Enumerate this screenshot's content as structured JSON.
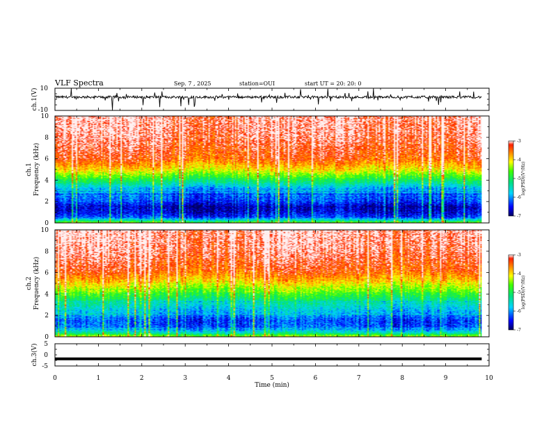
{
  "header": {
    "title": "VLF Spectra",
    "date": "Sep. 7 , 2025",
    "station": "station=OUI",
    "start": "start UT =  20: 20: 0"
  },
  "chart_data": [
    {
      "type": "line",
      "name": "ch1-waveform",
      "ylabel": "ch.1(V)",
      "ylim": [
        -10,
        10
      ],
      "yticks": [
        "10",
        "-10"
      ],
      "baseline": 2
    },
    {
      "type": "heatmap",
      "name": "ch1-spectrogram",
      "ylabel_line1": "ch.1",
      "ylabel_line2": "Frequency (kHz)",
      "ylim": [
        0,
        10
      ],
      "yticks": [
        "0",
        "2",
        "4",
        "6",
        "8",
        "10"
      ],
      "value_range": [
        -7,
        -3
      ],
      "colorbar_label": "log(PSD)(V²/Hz)",
      "colorbar_ticks": [
        "-3",
        "-4",
        "-5",
        "-6",
        "-7"
      ],
      "profile": [
        {
          "f": 0.0,
          "v": -4.5
        },
        {
          "f": 0.2,
          "v": -5.4
        },
        {
          "f": 0.5,
          "v": -6.3
        },
        {
          "f": 1.0,
          "v": -6.6
        },
        {
          "f": 1.5,
          "v": -6.7
        },
        {
          "f": 2.0,
          "v": -6.3
        },
        {
          "f": 2.6,
          "v": -6.1
        },
        {
          "f": 3.2,
          "v": -5.9
        },
        {
          "f": 3.8,
          "v": -5.2
        },
        {
          "f": 4.4,
          "v": -4.6
        },
        {
          "f": 5.0,
          "v": -4.0
        },
        {
          "f": 6.0,
          "v": -3.4
        },
        {
          "f": 8.0,
          "v": -3.1
        },
        {
          "f": 10.0,
          "v": -3.0
        }
      ]
    },
    {
      "type": "heatmap",
      "name": "ch2-spectrogram",
      "ylabel_line1": "ch.2",
      "ylabel_line2": "Frequency (kHz)",
      "ylim": [
        0,
        10
      ],
      "yticks": [
        "0",
        "2",
        "4",
        "6",
        "8",
        "10"
      ],
      "value_range": [
        -7,
        -3
      ],
      "colorbar_label": "log(PSD)(V²/Hz)",
      "colorbar_ticks": [
        "-3",
        "-4",
        "-5",
        "-6",
        "-7"
      ],
      "profile": [
        {
          "f": 0.0,
          "v": -4.3
        },
        {
          "f": 0.3,
          "v": -5.3
        },
        {
          "f": 0.8,
          "v": -6.2
        },
        {
          "f": 1.5,
          "v": -6.3
        },
        {
          "f": 2.2,
          "v": -5.9
        },
        {
          "f": 3.0,
          "v": -5.5
        },
        {
          "f": 3.8,
          "v": -4.9
        },
        {
          "f": 4.5,
          "v": -4.4
        },
        {
          "f": 5.2,
          "v": -3.9
        },
        {
          "f": 6.2,
          "v": -3.4
        },
        {
          "f": 8.0,
          "v": -3.1
        },
        {
          "f": 10.0,
          "v": -3.0
        }
      ]
    },
    {
      "type": "line",
      "name": "ch3-signal",
      "ylabel": "ch.3(V)",
      "ylim": [
        -5,
        5
      ],
      "yticks": [
        "5",
        "0",
        "-5"
      ],
      "baseline": -1.8
    }
  ],
  "xaxis": {
    "label": "Time (min)",
    "xlim": [
      0,
      10
    ],
    "ticks": [
      "0",
      "1",
      "2",
      "3",
      "4",
      "5",
      "6",
      "7",
      "8",
      "9",
      "10"
    ],
    "data_end": 9.83
  }
}
